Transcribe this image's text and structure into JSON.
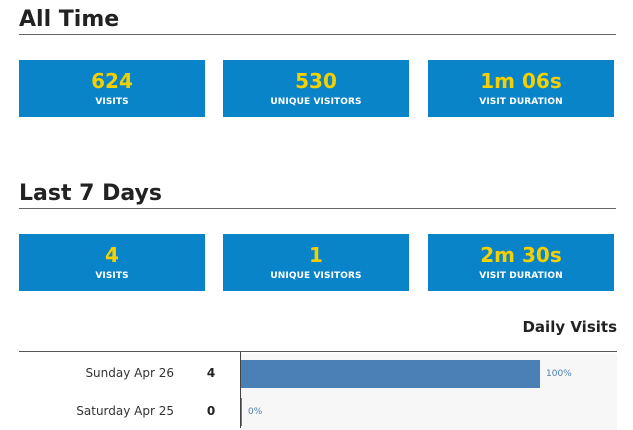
{
  "all_time": {
    "title": "All Time",
    "stats": [
      {
        "value": "624",
        "label": "VISITS"
      },
      {
        "value": "530",
        "label": "UNIQUE VISITORS"
      },
      {
        "value": "1m 06s",
        "label": "VISIT DURATION"
      }
    ]
  },
  "last_7_days": {
    "title": "Last 7 Days",
    "stats": [
      {
        "value": "4",
        "label": "VISITS"
      },
      {
        "value": "1",
        "label": "UNIQUE VISITORS"
      },
      {
        "value": "2m 30s",
        "label": "VISIT DURATION"
      }
    ]
  },
  "daily_visits": {
    "title": "Daily Visits",
    "rows": [
      {
        "day": "Sunday Apr 26",
        "count": "4",
        "percent_label": "100%",
        "fraction": 1.0
      },
      {
        "day": "Saturday Apr 25",
        "count": "0",
        "percent_label": "0%",
        "fraction": 0.0
      }
    ]
  },
  "colors": {
    "stat_box": "#0a84c8",
    "stat_value": "#f5d000",
    "bar": "#4a80b5"
  }
}
